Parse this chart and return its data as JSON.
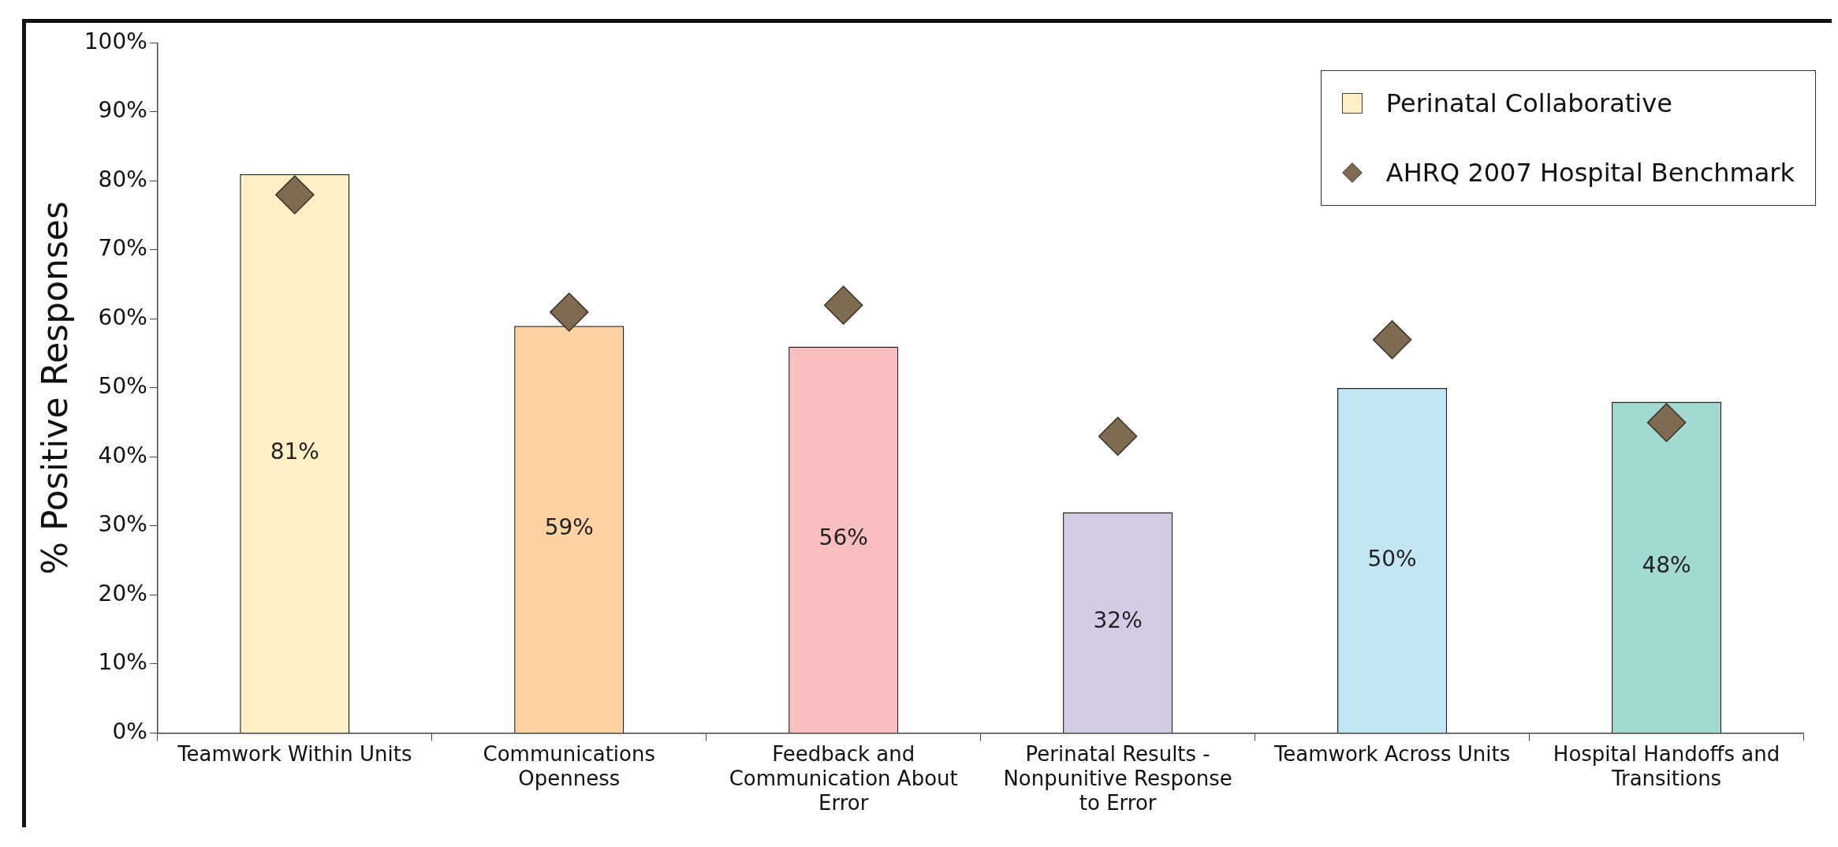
{
  "chart_data": {
    "type": "bar",
    "ylabel": "% Positive Responses",
    "categories": [
      "Teamwork Within Units",
      "Communications Openness",
      "Feedback and Communication About Error",
      "Perinatal Results - Nonpunitive Response to Error",
      "Teamwork Across Units",
      "Hospital Handoffs and Transitions"
    ],
    "series": [
      {
        "name": "Perinatal Collaborative",
        "colors": [
          "#fff0c6",
          "#fdd3a3",
          "#f8bec0",
          "#d3cce4",
          "#c0e6f3",
          "#a2d9d2"
        ],
        "values": [
          81,
          59,
          56,
          32,
          50,
          48
        ],
        "value_labels": [
          "81%",
          "59%",
          "56%",
          "32%",
          "50%",
          "48%"
        ]
      },
      {
        "name": "AHRQ 2007 Hospital Benchmark",
        "type": "scatter",
        "marker": "diamond",
        "color": "#7f6a52",
        "x": [
          "Teamwork Within Units",
          "Communications Openness",
          "Feedback and Communication About Error",
          "Perinatal Results - Nonpunitive Response to Error",
          "Teamwork Across Units",
          "Hospital Handoffs and Transitions"
        ],
        "values": [
          78,
          61,
          62,
          43,
          57,
          45
        ]
      }
    ],
    "ylim": [
      0,
      100
    ],
    "yticks": [
      {
        "value": 0,
        "label": "0%"
      },
      {
        "value": 10,
        "label": "10%"
      },
      {
        "value": 20,
        "label": "20%"
      },
      {
        "value": 30,
        "label": "30%"
      },
      {
        "value": 40,
        "label": "40%"
      },
      {
        "value": 50,
        "label": "50%"
      },
      {
        "value": 60,
        "label": "60%"
      },
      {
        "value": 70,
        "label": "70%"
      },
      {
        "value": 80,
        "label": "80%"
      },
      {
        "value": 90,
        "label": "90%"
      },
      {
        "value": 100,
        "label": "100%"
      }
    ],
    "grid": false,
    "legend": "top right"
  }
}
